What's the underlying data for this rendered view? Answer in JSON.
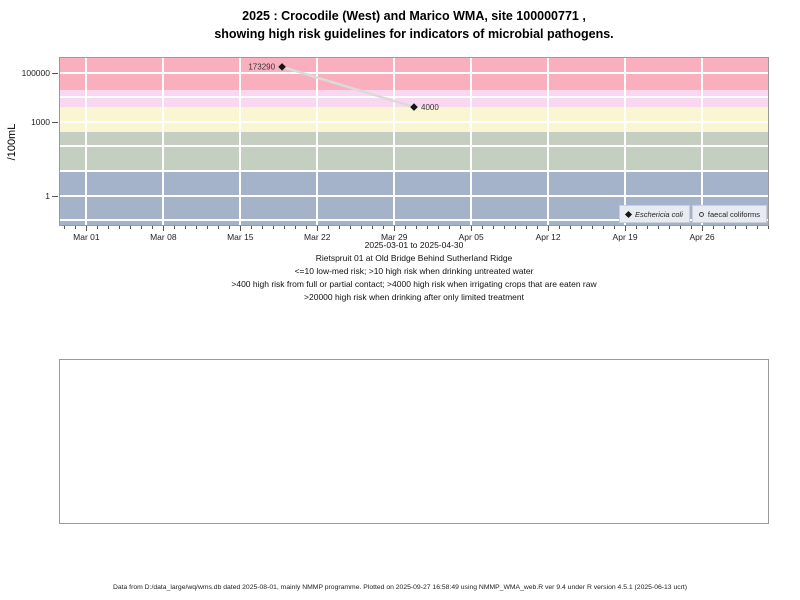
{
  "title": {
    "line1": "2025 : Crocodile (West) and Marico WMA, site 100000771 ,",
    "line2": "showing high risk guidelines for indicators of microbial pathogens."
  },
  "legend": {
    "items": [
      {
        "label": "Eschericia coli",
        "marker": "filled-diamond"
      },
      {
        "label": "faecal coliforms",
        "marker": "open-circle"
      }
    ]
  },
  "caption": {
    "lines": [
      "2025-03-01 to 2025-04-30",
      "Rietspruit 01 at Old Bridge Behind Sutherland Ridge",
      "<=10 low-med risk; >10 high risk when drinking untreated water",
      ">400 high risk from full or partial contact; >4000 high risk when irrigating crops that are eaten raw",
      ">20000 high risk when drinking after only limited treatment"
    ]
  },
  "footer": {
    "text": "Data from D:/data_large/wq/wms.db dated 2025-08-01, mainly NMMP programme. Plotted on 2025-09-27 16:58:49 using NMMP_WMA_web.R ver 9.4 under R version 4.5.1 (2025-06-13 ucrt)"
  },
  "chart_data": {
    "type": "scatter",
    "title": "2025 : Crocodile (West) and Marico WMA, site 100000771, showing high risk guidelines for indicators of microbial pathogens.",
    "xlabel": "",
    "ylabel": "/100mL",
    "x_axis": {
      "tick_labels": [
        "Mar 01",
        "Mar 08",
        "Mar 15",
        "Mar 22",
        "Mar 29",
        "Apr 05",
        "Apr 12",
        "Apr 19",
        "Apr 26"
      ],
      "tick_day_offsets": [
        0,
        7,
        14,
        21,
        28,
        35,
        42,
        49,
        56
      ],
      "domain_days": [
        -2.4,
        62.0
      ],
      "minor_tick_every_days": 1,
      "range_shown": "2025-03-01 to 2025-04-30"
    },
    "y_axis": {
      "label": "/100mL",
      "scale": "log10",
      "tick_values": [
        1,
        1000,
        100000
      ],
      "tick_labels": [
        "1",
        "1000",
        "100000"
      ],
      "domain_log10": [
        -1.2,
        5.6
      ],
      "gridline_values": [
        0.1,
        1,
        10,
        100,
        1000,
        10000,
        100000
      ]
    },
    "bands": [
      {
        "name": "high-risk-limited-treatment",
        "range": ">20000",
        "from": 20000,
        "to": null,
        "color": "#F9AFBD"
      },
      {
        "name": "high-risk-irrigating-raw-crops",
        "range": "4000-20000",
        "from": 4000,
        "to": 20000,
        "color": "#FAD7F0"
      },
      {
        "name": "high-risk-contact",
        "range": "400-4000",
        "from": 400,
        "to": 4000,
        "color": "#FAF6D1"
      },
      {
        "name": "high-risk-untreated-drinking",
        "range": "10-400",
        "from": 10,
        "to": 400,
        "color": "#C5CFC1"
      },
      {
        "name": "low-med-risk",
        "range": "<=10",
        "from": null,
        "to": 10,
        "color": "#A4B2CA"
      }
    ],
    "series": [
      {
        "name": "Eschericia coli",
        "marker": "filled-diamond",
        "color": "#151515",
        "points": [
          {
            "date_est": "2025-03-19",
            "day_offset": 17.8,
            "value": 173290,
            "label": "173290",
            "label_side": "left"
          },
          {
            "date_est": "2025-03-31",
            "day_offset": 29.8,
            "value": 4000,
            "label": "4000",
            "label_side": "right"
          }
        ]
      },
      {
        "name": "faecal coliforms",
        "marker": "open-circle",
        "color": "#444444",
        "points": []
      }
    ],
    "connector_line_color": "#DADADA",
    "legend_position": "bottom-right-inside",
    "grid": true
  }
}
